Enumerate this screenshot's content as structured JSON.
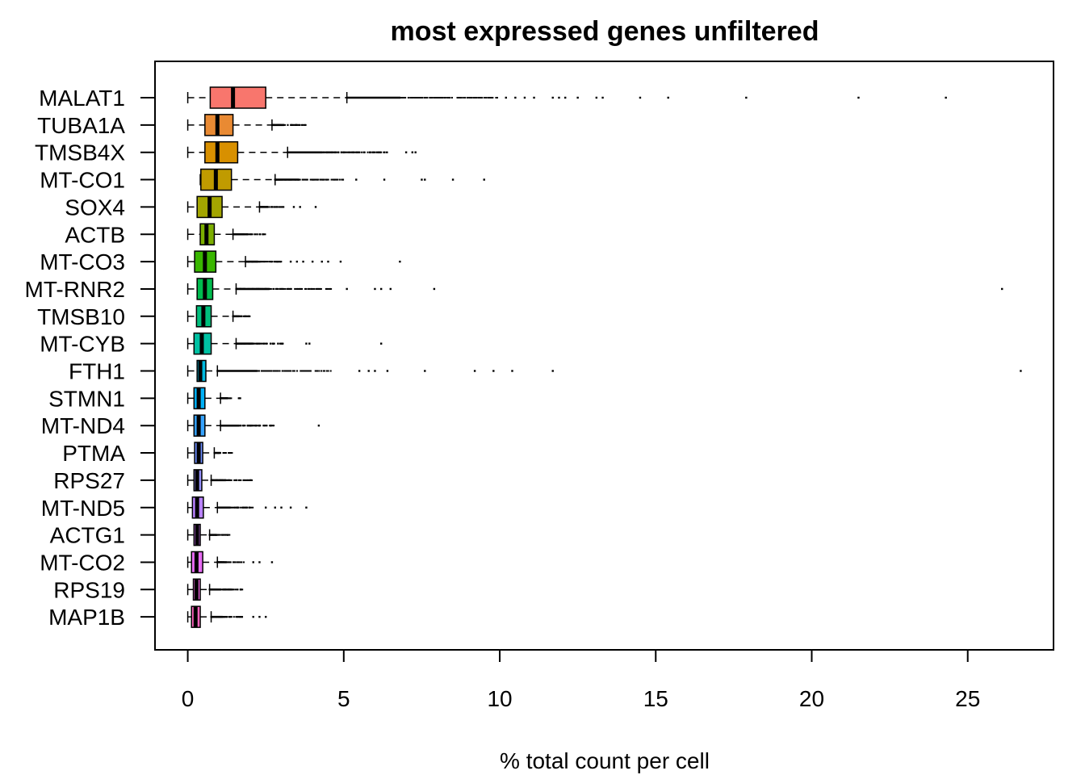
{
  "chart_data": {
    "type": "boxplot",
    "orientation": "horizontal",
    "title": "most expressed genes unfiltered",
    "xlabel": "% total count per cell",
    "ylabel": "",
    "xlim": [
      -1.05,
      27.75
    ],
    "xticks": [
      0,
      5,
      10,
      15,
      20,
      25
    ],
    "grid": false,
    "legend": "none",
    "box_outline_color": "#000000",
    "whisker_style": "dashed",
    "categories": [
      "MALAT1",
      "TUBA1A",
      "TMSB4X",
      "MT-CO1",
      "SOX4",
      "ACTB",
      "MT-CO3",
      "MT-RNR2",
      "TMSB10",
      "MT-CYB",
      "FTH1",
      "STMN1",
      "MT-ND4",
      "PTMA",
      "RPS27",
      "MT-ND5",
      "ACTG1",
      "MT-CO2",
      "RPS19",
      "MAP1B"
    ],
    "series": [
      {
        "gene": "MALAT1",
        "color": "#F8766D",
        "whisker_low": 0.0,
        "q1": 0.72,
        "median": 1.45,
        "q3": 2.5,
        "whisker_high": 5.1,
        "outlier_band": [
          5.1,
          10.0
        ],
        "outliers": [
          10.2,
          10.5,
          10.8,
          11.1,
          11.7,
          11.9,
          12.1,
          12.5,
          13.1,
          13.3,
          14.5,
          15.4,
          17.9,
          21.5,
          24.3
        ]
      },
      {
        "gene": "TUBA1A",
        "color": "#E98A33",
        "whisker_low": 0.0,
        "q1": 0.55,
        "median": 0.95,
        "q3": 1.45,
        "whisker_high": 2.7,
        "outlier_band": [
          2.7,
          3.8
        ],
        "outliers": []
      },
      {
        "gene": "TMSB4X",
        "color": "#D89000",
        "whisker_low": 0.0,
        "q1": 0.55,
        "median": 0.95,
        "q3": 1.6,
        "whisker_high": 3.2,
        "outlier_band": [
          3.2,
          6.4
        ],
        "outliers": [
          7.0,
          7.2,
          7.3
        ]
      },
      {
        "gene": "MT-CO1",
        "color": "#C09B00",
        "whisker_low": 0.4,
        "q1": 0.42,
        "median": 0.9,
        "q3": 1.4,
        "whisker_high": 2.8,
        "outlier_band": [
          2.8,
          5.0
        ],
        "outliers": [
          5.4,
          6.3,
          7.5,
          7.6,
          8.5,
          9.5
        ]
      },
      {
        "gene": "SOX4",
        "color": "#A3A500",
        "whisker_low": 0.0,
        "q1": 0.3,
        "median": 0.7,
        "q3": 1.1,
        "whisker_high": 2.3,
        "outlier_band": [
          2.3,
          3.1
        ],
        "outliers": [
          3.4,
          3.6,
          4.1
        ]
      },
      {
        "gene": "ACTB",
        "color": "#7CAE00",
        "whisker_low": 0.0,
        "q1": 0.4,
        "median": 0.6,
        "q3": 0.85,
        "whisker_high": 1.45,
        "outlier_band": [
          1.45,
          2.5
        ],
        "outliers": []
      },
      {
        "gene": "MT-CO3",
        "color": "#39B600",
        "whisker_low": 0.0,
        "q1": 0.22,
        "median": 0.55,
        "q3": 0.9,
        "whisker_high": 1.85,
        "outlier_band": [
          1.85,
          3.0
        ],
        "outliers": [
          3.3,
          3.5,
          3.7,
          4.0,
          4.3,
          4.5,
          4.9,
          6.8
        ]
      },
      {
        "gene": "MT-RNR2",
        "color": "#00BB4E",
        "whisker_low": 0.0,
        "q1": 0.3,
        "median": 0.55,
        "q3": 0.8,
        "whisker_high": 1.55,
        "outlier_band": [
          1.55,
          4.6
        ],
        "outliers": [
          5.1,
          6.0,
          6.2,
          6.5,
          7.9,
          26.1
        ]
      },
      {
        "gene": "TMSB10",
        "color": "#00BF7D",
        "whisker_low": 0.0,
        "q1": 0.28,
        "median": 0.5,
        "q3": 0.75,
        "whisker_high": 1.45,
        "outlier_band": [
          1.45,
          2.0
        ],
        "outliers": []
      },
      {
        "gene": "MT-CYB",
        "color": "#00C1A3",
        "whisker_low": 0.0,
        "q1": 0.2,
        "median": 0.45,
        "q3": 0.75,
        "whisker_high": 1.55,
        "outlier_band": [
          1.55,
          3.1
        ],
        "outliers": [
          3.8,
          3.9,
          6.2
        ]
      },
      {
        "gene": "FTH1",
        "color": "#00BAE0",
        "whisker_low": 0.0,
        "q1": 0.3,
        "median": 0.4,
        "q3": 0.58,
        "whisker_high": 0.95,
        "outlier_band": [
          0.95,
          4.6
        ],
        "outliers": [
          5.5,
          5.8,
          6.0,
          6.4,
          7.6,
          9.2,
          9.8,
          10.4,
          11.7,
          26.7
        ]
      },
      {
        "gene": "STMN1",
        "color": "#00B0F6",
        "whisker_low": 0.0,
        "q1": 0.2,
        "median": 0.35,
        "q3": 0.55,
        "whisker_high": 1.05,
        "outlier_band": [
          1.05,
          1.7
        ],
        "outliers": []
      },
      {
        "gene": "MT-ND4",
        "color": "#35A2FF",
        "whisker_low": 0.0,
        "q1": 0.2,
        "median": 0.35,
        "q3": 0.55,
        "whisker_high": 1.05,
        "outlier_band": [
          1.05,
          2.8
        ],
        "outliers": [
          4.2
        ]
      },
      {
        "gene": "PTMA",
        "color": "#6E8FFF",
        "whisker_low": 0.0,
        "q1": 0.22,
        "median": 0.35,
        "q3": 0.48,
        "whisker_high": 0.85,
        "outlier_band": [
          0.85,
          1.45
        ],
        "outliers": []
      },
      {
        "gene": "RPS27",
        "color": "#9590FF",
        "whisker_low": 0.0,
        "q1": 0.2,
        "median": 0.3,
        "q3": 0.45,
        "whisker_high": 0.75,
        "outlier_band": [
          0.75,
          2.1
        ],
        "outliers": []
      },
      {
        "gene": "MT-ND5",
        "color": "#B983FF",
        "whisker_low": 0.0,
        "q1": 0.15,
        "median": 0.3,
        "q3": 0.5,
        "whisker_high": 0.95,
        "outlier_band": [
          0.95,
          2.1
        ],
        "outliers": [
          2.5,
          2.8,
          3.0,
          3.3,
          3.8
        ]
      },
      {
        "gene": "ACTG1",
        "color": "#D575FE",
        "whisker_low": 0.0,
        "q1": 0.2,
        "median": 0.3,
        "q3": 0.4,
        "whisker_high": 0.7,
        "outlier_band": [
          0.7,
          1.35
        ],
        "outliers": []
      },
      {
        "gene": "MT-CO2",
        "color": "#E76BF3",
        "whisker_low": 0.0,
        "q1": 0.12,
        "median": 0.28,
        "q3": 0.48,
        "whisker_high": 0.95,
        "outlier_band": [
          0.95,
          1.8
        ],
        "outliers": [
          2.1,
          2.3,
          2.7
        ]
      },
      {
        "gene": "RPS19",
        "color": "#F564E3",
        "whisker_low": 0.0,
        "q1": 0.18,
        "median": 0.28,
        "q3": 0.4,
        "whisker_high": 0.7,
        "outlier_band": [
          0.7,
          1.75
        ],
        "outliers": []
      },
      {
        "gene": "MAP1B",
        "color": "#FF62BC",
        "whisker_low": 0.0,
        "q1": 0.12,
        "median": 0.25,
        "q3": 0.4,
        "whisker_high": 0.75,
        "outlier_band": [
          0.75,
          1.8
        ],
        "outliers": [
          2.1,
          2.3,
          2.5
        ]
      }
    ]
  }
}
